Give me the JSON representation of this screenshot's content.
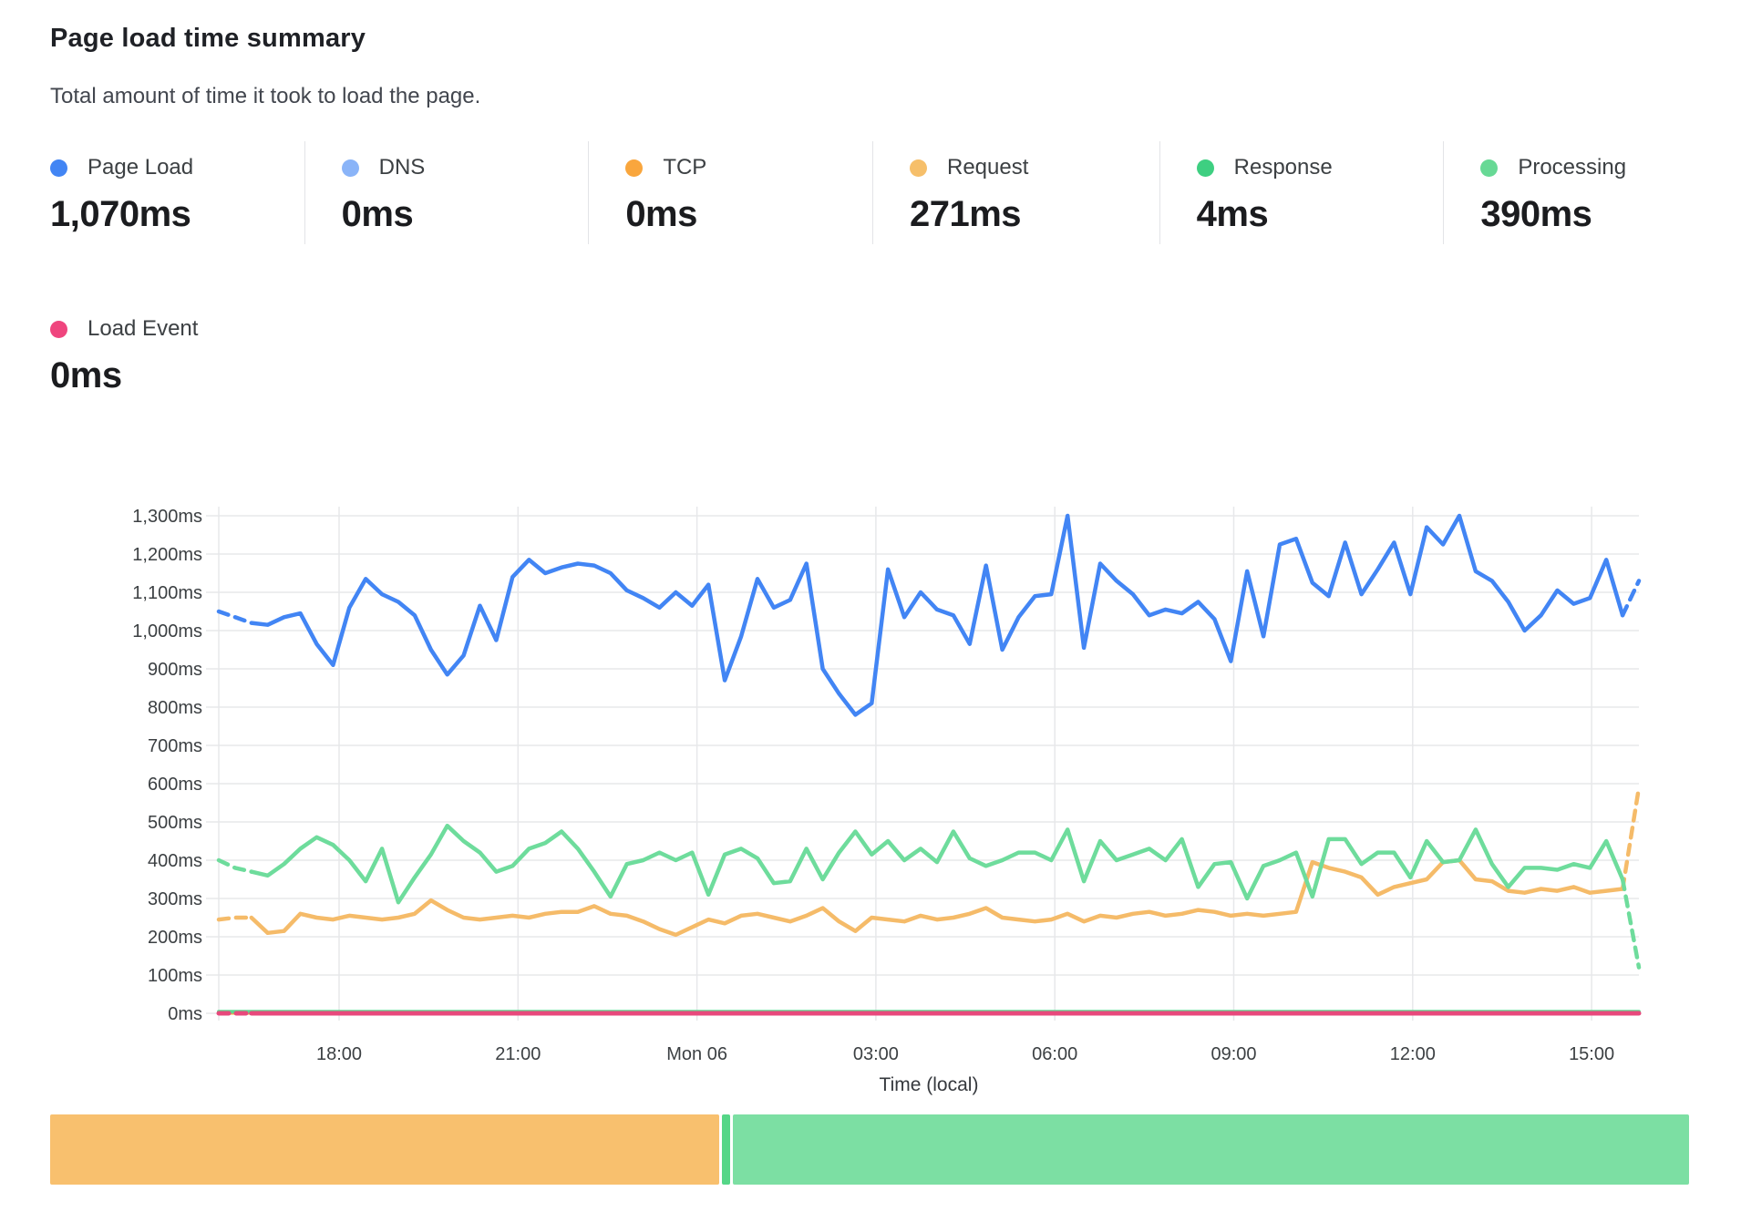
{
  "header": {
    "title": "Page load time summary",
    "subtitle": "Total amount of time it took to load the page."
  },
  "stats": [
    {
      "id": "page-load",
      "label": "Page Load",
      "value": "1,070ms",
      "color": "#4285f4"
    },
    {
      "id": "dns",
      "label": "DNS",
      "value": "0ms",
      "color": "#8ab4f8"
    },
    {
      "id": "tcp",
      "label": "TCP",
      "value": "0ms",
      "color": "#f9a63d"
    },
    {
      "id": "request",
      "label": "Request",
      "value": "271ms",
      "color": "#f6bf6a"
    },
    {
      "id": "response",
      "label": "Response",
      "value": "4ms",
      "color": "#3ecf81"
    },
    {
      "id": "processing",
      "label": "Processing",
      "value": "390ms",
      "color": "#67d995"
    },
    {
      "id": "load-event",
      "label": "Load Event",
      "value": "0ms",
      "color": "#ef457e"
    }
  ],
  "chart_data": {
    "type": "line",
    "title": "Page load time summary",
    "xlabel": "Time (local)",
    "ylabel": "",
    "ylim": [
      0,
      1300
    ],
    "grid": true,
    "legend_position": "top-stats",
    "ytick_labels": [
      "0ms",
      "100ms",
      "200ms",
      "300ms",
      "400ms",
      "500ms",
      "600ms",
      "700ms",
      "800ms",
      "900ms",
      "1,000ms",
      "1,100ms",
      "1,200ms",
      "1,300ms"
    ],
    "xticks": [
      "18:00",
      "21:00",
      "Mon 06",
      "03:00",
      "06:00",
      "09:00",
      "12:00",
      "15:00"
    ],
    "series": [
      {
        "name": "DNS",
        "color": "#8ab4f8",
        "width": 3,
        "constant": 0,
        "dash_start_points": 0,
        "dash_end_points": 0
      },
      {
        "name": "TCP",
        "color": "#f9a63d",
        "width": 3,
        "constant": 0,
        "dash_start_points": 0,
        "dash_end_points": 0
      },
      {
        "name": "Response",
        "color": "#5fd890",
        "width": 4,
        "constant": 4,
        "dash_start_points": 0,
        "dash_end_points": 0
      },
      {
        "name": "Load Event",
        "color": "#e7497c",
        "width": 5,
        "constant": 0,
        "dash_start_points": 2,
        "dash_end_points": 0
      },
      {
        "name": "Request",
        "color": "#f5bb69",
        "width": 4.5,
        "dash_start_points": 2,
        "dash_end_points": 1,
        "values": [
          245,
          250,
          250,
          210,
          215,
          260,
          250,
          245,
          255,
          250,
          245,
          250,
          260,
          295,
          270,
          250,
          245,
          250,
          255,
          250,
          260,
          265,
          265,
          280,
          260,
          255,
          240,
          220,
          205,
          225,
          245,
          235,
          255,
          260,
          250,
          240,
          255,
          275,
          240,
          215,
          250,
          245,
          240,
          255,
          245,
          250,
          260,
          275,
          250,
          245,
          240,
          245,
          260,
          240,
          255,
          250,
          260,
          265,
          255,
          260,
          270,
          265,
          255,
          260,
          255,
          260,
          265,
          395,
          380,
          370,
          355,
          310,
          330,
          340,
          350,
          395,
          400,
          350,
          345,
          320,
          315,
          325,
          320,
          330,
          315,
          320,
          325,
          590
        ]
      },
      {
        "name": "Processing",
        "color": "#6edc9c",
        "width": 4.5,
        "dash_start_points": 2,
        "dash_end_points": 1,
        "values": [
          400,
          380,
          370,
          360,
          390,
          430,
          460,
          440,
          400,
          345,
          430,
          290,
          355,
          415,
          490,
          450,
          420,
          370,
          385,
          430,
          445,
          475,
          430,
          370,
          305,
          390,
          400,
          420,
          400,
          420,
          310,
          415,
          430,
          405,
          340,
          345,
          430,
          350,
          420,
          475,
          415,
          450,
          400,
          430,
          395,
          475,
          405,
          385,
          400,
          420,
          420,
          400,
          480,
          345,
          450,
          400,
          415,
          430,
          400,
          455,
          330,
          390,
          395,
          300,
          385,
          400,
          420,
          305,
          455,
          455,
          390,
          420,
          420,
          355,
          450,
          395,
          400,
          480,
          390,
          330,
          380,
          380,
          375,
          390,
          380,
          450,
          350,
          120
        ]
      },
      {
        "name": "Page Load",
        "color": "#4285f4",
        "width": 4.5,
        "dash_start_points": 2,
        "dash_end_points": 1,
        "values": [
          1050,
          1035,
          1020,
          1015,
          1035,
          1045,
          965,
          910,
          1060,
          1135,
          1095,
          1075,
          1040,
          950,
          885,
          935,
          1065,
          975,
          1140,
          1185,
          1150,
          1165,
          1175,
          1170,
          1150,
          1105,
          1085,
          1060,
          1100,
          1065,
          1120,
          870,
          985,
          1135,
          1060,
          1080,
          1175,
          900,
          835,
          780,
          810,
          1160,
          1035,
          1100,
          1055,
          1040,
          965,
          1170,
          950,
          1035,
          1090,
          1095,
          1300,
          955,
          1175,
          1130,
          1095,
          1040,
          1055,
          1045,
          1075,
          1030,
          920,
          1155,
          985,
          1225,
          1240,
          1125,
          1090,
          1230,
          1095,
          1160,
          1230,
          1095,
          1270,
          1225,
          1300,
          1155,
          1130,
          1075,
          1000,
          1040,
          1105,
          1070,
          1085,
          1185,
          1040,
          1130
        ]
      }
    ]
  },
  "load_bar": {
    "segments": [
      {
        "name": "request-share",
        "color": "#f8c06e",
        "pct": 40.75
      },
      {
        "name": "sliver-share",
        "color": "#55d687",
        "pct": 0.5
      },
      {
        "name": "processing-share",
        "color": "#7cdfa3",
        "pct": 58.25
      }
    ]
  }
}
